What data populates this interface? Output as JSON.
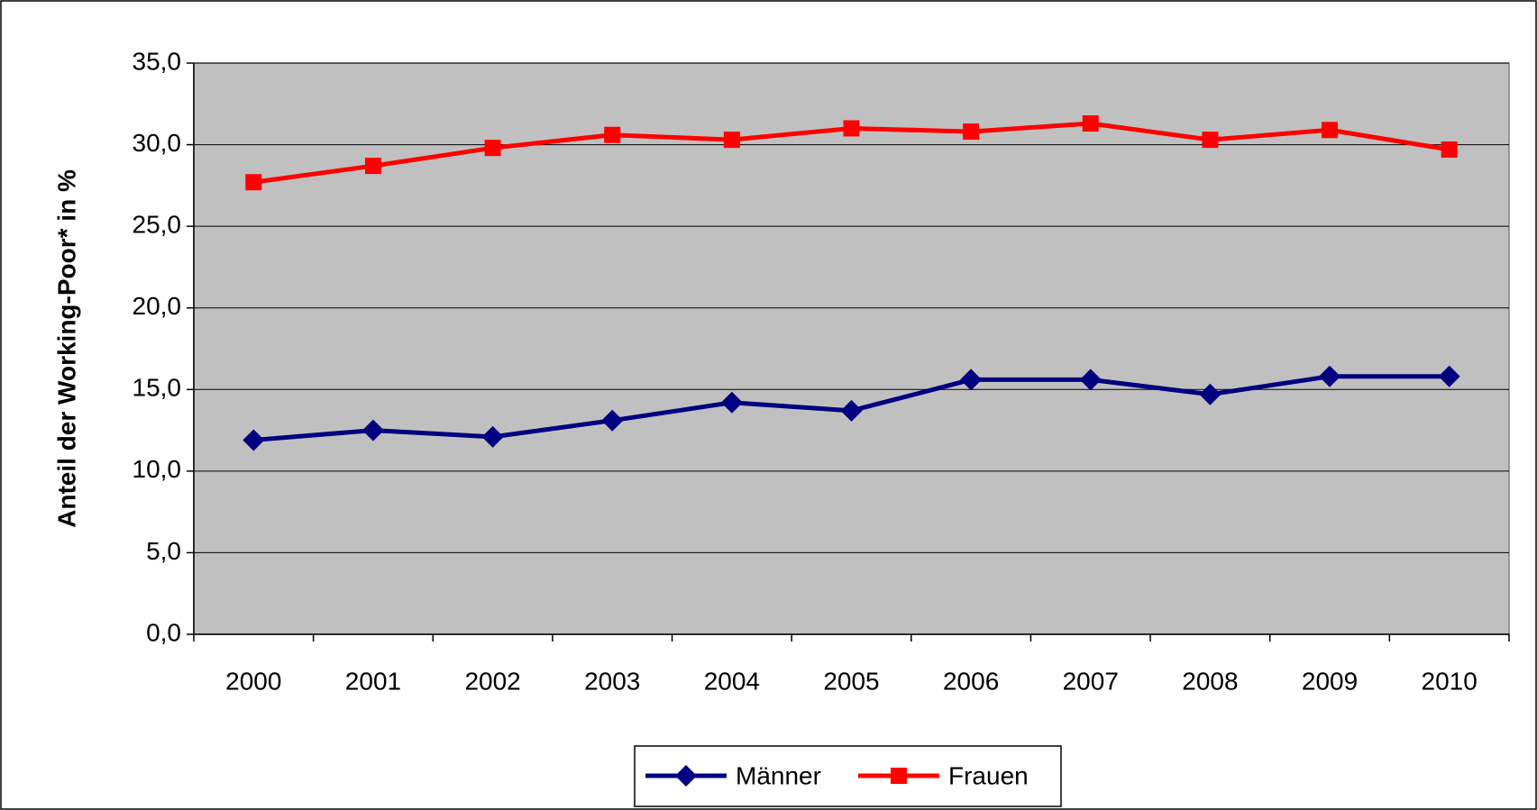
{
  "chart_data": {
    "type": "line",
    "y_label": "Anteil der Working-Poor* in %",
    "categories": [
      "2000",
      "2001",
      "2002",
      "2003",
      "2004",
      "2005",
      "2006",
      "2007",
      "2008",
      "2009",
      "2010"
    ],
    "series": [
      {
        "name": "Männer",
        "color": "#000080",
        "marker": "diamond",
        "values": [
          11.9,
          12.5,
          12.1,
          13.1,
          14.2,
          13.7,
          15.6,
          15.6,
          14.7,
          15.8,
          15.8
        ]
      },
      {
        "name": "Frauen",
        "color": "#ff0000",
        "marker": "square",
        "values": [
          27.7,
          28.7,
          29.8,
          30.6,
          30.3,
          31.0,
          30.8,
          31.3,
          30.3,
          30.9,
          29.7
        ]
      }
    ],
    "ylim": [
      0,
      35
    ],
    "yticks": [
      {
        "value": 0,
        "label": "0,0"
      },
      {
        "value": 5,
        "label": "5,0"
      },
      {
        "value": 10,
        "label": "10,0"
      },
      {
        "value": 15,
        "label": "15,0"
      },
      {
        "value": 20,
        "label": "20,0"
      },
      {
        "value": 25,
        "label": "25,0"
      },
      {
        "value": 30,
        "label": "30,0"
      },
      {
        "value": 35,
        "label": "35,0"
      }
    ],
    "grid": true,
    "legend": "bottom",
    "plot_background": "#c0c0c0"
  }
}
